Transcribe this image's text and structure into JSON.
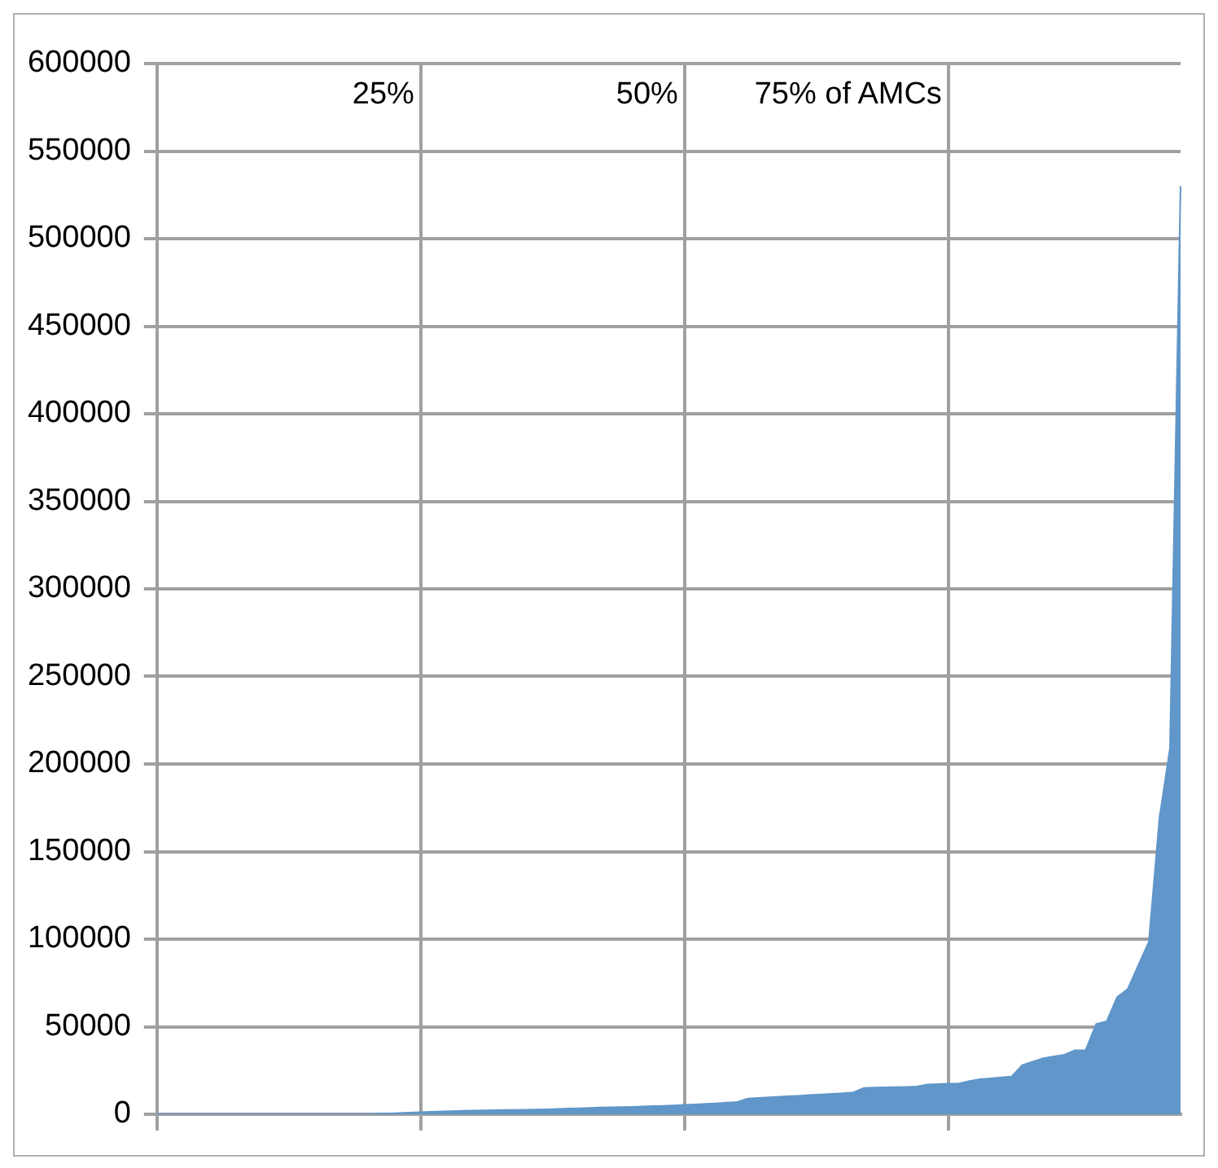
{
  "chart_data": {
    "type": "area",
    "categories": [
      null,
      null,
      null,
      null,
      null,
      null,
      null,
      null,
      null,
      null,
      null,
      null,
      null,
      null,
      null,
      null,
      null,
      null,
      null,
      null,
      null,
      null,
      null,
      null,
      null,
      null,
      null,
      null,
      null,
      null,
      null,
      null,
      null,
      null,
      null,
      null,
      null,
      null,
      null,
      null,
      null,
      null,
      null,
      null,
      null,
      null,
      null,
      null,
      null,
      null,
      null,
      null,
      null,
      null,
      null,
      null,
      null,
      null,
      null,
      null,
      null,
      null,
      null,
      null,
      null,
      null,
      null,
      null,
      null,
      null,
      null,
      null,
      null,
      null,
      null,
      null,
      null,
      null,
      null,
      null,
      null,
      null,
      null,
      null,
      null,
      null,
      null,
      null,
      null,
      null,
      null,
      null,
      null,
      null,
      null,
      null,
      null,
      null
    ],
    "series": [
      {
        "color": "#6096c9",
        "values": [
          0,
          0,
          0,
          0,
          0,
          0,
          0,
          0,
          0,
          0,
          0,
          0,
          0,
          0,
          0,
          0,
          0,
          0,
          0,
          0,
          0,
          300,
          500,
          700,
          900,
          1200,
          1400,
          1600,
          1800,
          2000,
          2100,
          2200,
          2300,
          2400,
          2500,
          2600,
          2700,
          2800,
          3000,
          3200,
          3400,
          3600,
          3800,
          4000,
          4100,
          4200,
          4400,
          4600,
          4800,
          5000,
          5300,
          5600,
          5900,
          6200,
          6600,
          7000,
          9000,
          9300,
          9600,
          10000,
          10300,
          10600,
          11000,
          11300,
          11600,
          12000,
          12500,
          15000,
          15200,
          15400,
          15500,
          15600,
          15800,
          17000,
          17200,
          17400,
          17600,
          19000,
          20000,
          20500,
          21000,
          21500,
          28000,
          30000,
          32000,
          33000,
          34000,
          36500,
          36500,
          51500,
          53000,
          67000,
          71500,
          85000,
          98500,
          169000,
          209000,
          530000
        ]
      }
    ],
    "ylim": [
      0,
      600000
    ],
    "yticks": [
      0,
      50000,
      100000,
      150000,
      200000,
      250000,
      300000,
      350000,
      400000,
      450000,
      500000,
      550000,
      600000
    ],
    "tick_labels": "y",
    "grid": true,
    "legend": false,
    "marker": "none",
    "annotations": [
      "25%",
      "50%",
      "75% of AMCs"
    ]
  }
}
